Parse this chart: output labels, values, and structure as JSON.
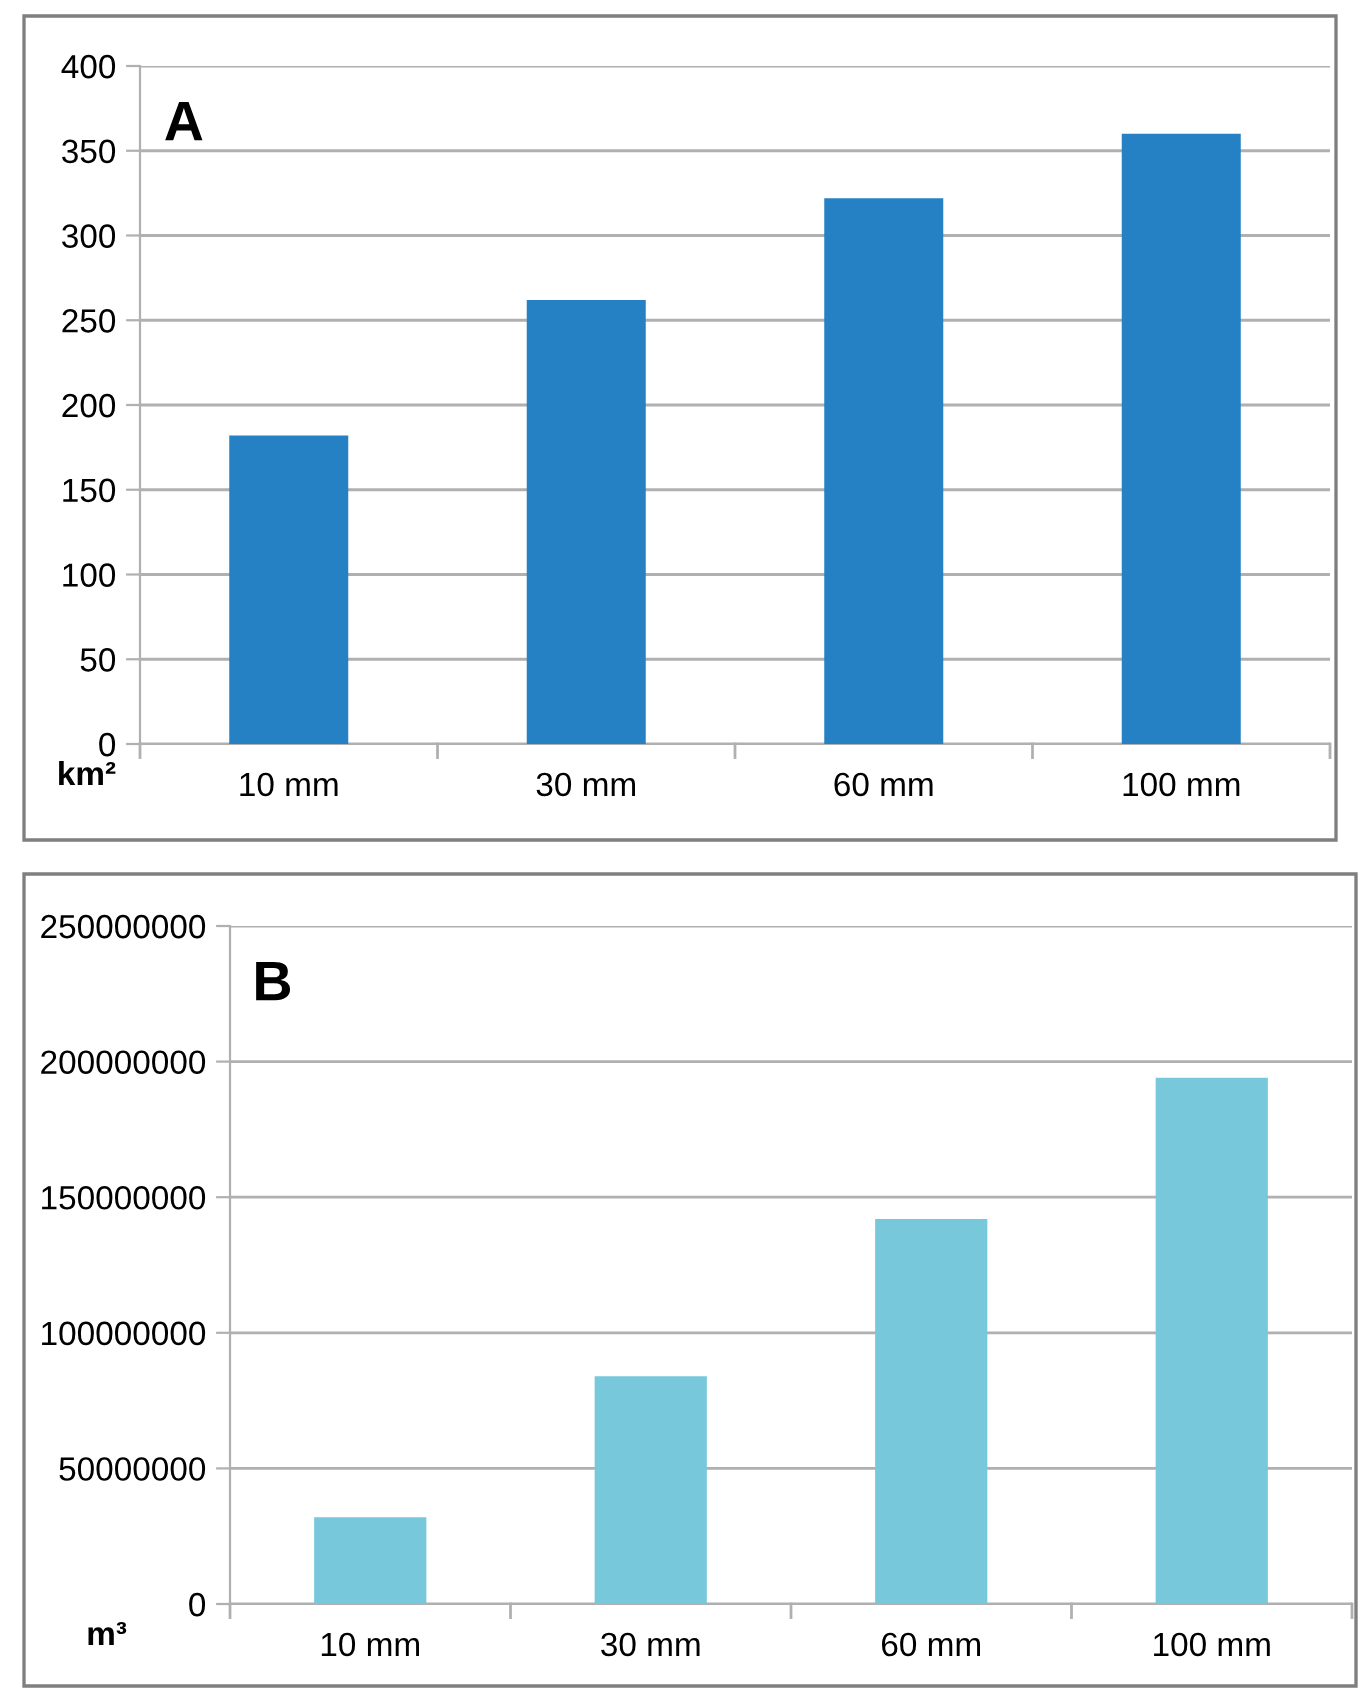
{
  "chart_data": [
    {
      "type": "bar",
      "title": "A",
      "xlabel": "km²",
      "categories": [
        "10 mm",
        "30 mm",
        "60 mm",
        "100 mm"
      ],
      "values": [
        182,
        262,
        322,
        360
      ],
      "color": "#2581c4",
      "ylim": [
        0,
        400
      ],
      "yticks": [
        0,
        50,
        100,
        150,
        200,
        250,
        300,
        350,
        400
      ],
      "grid": "y"
    },
    {
      "type": "bar",
      "title": "B",
      "xlabel": "m³",
      "categories": [
        "10 mm",
        "30 mm",
        "60 mm",
        "100 mm"
      ],
      "values": [
        32000000,
        84000000,
        142000000,
        194000000
      ],
      "color": "#77c8db",
      "ylim": [
        0,
        250000000
      ],
      "yticks": [
        0,
        50000000,
        100000000,
        150000000,
        200000000,
        250000000
      ],
      "grid": "y"
    }
  ]
}
